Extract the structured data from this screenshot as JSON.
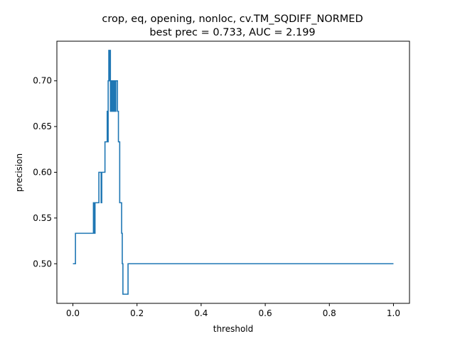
{
  "chart_data": {
    "type": "line",
    "title": "crop, eq, opening, nonloc, cv.TM_SQDIFF_NORMED",
    "subtitle": "best prec = 0.733, AUC = 2.199",
    "xlabel": "threshold",
    "ylabel": "precision",
    "xlim": [
      -0.05,
      1.05
    ],
    "ylim": [
      0.4567,
      0.7433
    ],
    "x_ticks": [
      0.0,
      0.2,
      0.4,
      0.6,
      0.8,
      1.0
    ],
    "x_tick_labels": [
      "0.0",
      "0.2",
      "0.4",
      "0.6",
      "0.8",
      "1.0"
    ],
    "y_ticks": [
      0.5,
      0.55,
      0.6,
      0.65,
      0.7
    ],
    "y_tick_labels": [
      "0.50",
      "0.55",
      "0.60",
      "0.65",
      "0.70"
    ],
    "grid": false,
    "line_color": "#1f77b4",
    "series": [
      {
        "step": "post",
        "x": [
          0.0,
          0.008,
          0.064,
          0.066,
          0.069,
          0.072,
          0.081,
          0.088,
          0.09,
          0.098,
          0.1,
          0.107,
          0.108,
          0.11,
          0.112,
          0.114,
          0.115,
          0.117,
          0.118,
          0.12,
          0.122,
          0.124,
          0.126,
          0.128,
          0.13,
          0.132,
          0.134,
          0.136,
          0.139,
          0.142,
          0.146,
          0.152,
          0.154,
          0.156,
          0.158,
          0.172,
          1.0
        ],
        "y": [
          0.5,
          0.5333,
          0.5667,
          0.5333,
          0.5667,
          0.5667,
          0.6,
          0.5667,
          0.6,
          0.6,
          0.6333,
          0.6667,
          0.6333,
          0.7,
          0.7333,
          0.7,
          0.7333,
          0.6667,
          0.7,
          0.6667,
          0.7,
          0.6667,
          0.7,
          0.6667,
          0.7,
          0.6667,
          0.7,
          0.7,
          0.6667,
          0.6333,
          0.5667,
          0.5333,
          0.5,
          0.4667,
          0.4667,
          0.5,
          0.5
        ]
      }
    ]
  }
}
